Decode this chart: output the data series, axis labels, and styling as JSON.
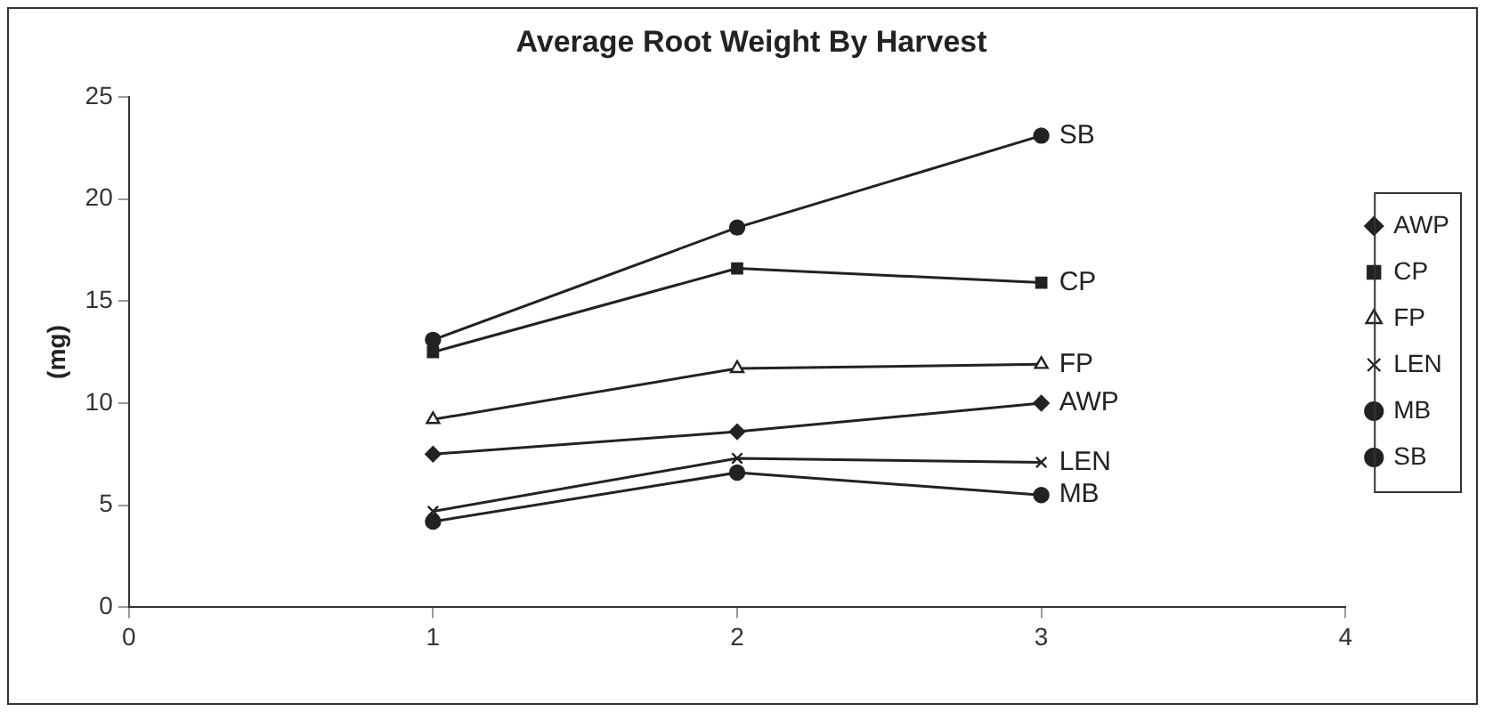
{
  "chart_data": {
    "type": "line",
    "title": "Average Root Weight By Harvest",
    "ylabel": "(mg)",
    "x": [
      1,
      2,
      3
    ],
    "series": [
      {
        "name": "AWP",
        "color": "#222222",
        "marker": "diamond",
        "values": [
          7.5,
          8.6,
          10.0
        ]
      },
      {
        "name": "CP",
        "color": "#222222",
        "marker": "square",
        "values": [
          12.5,
          16.6,
          15.9
        ]
      },
      {
        "name": "FP",
        "color": "#222222",
        "marker": "triangle",
        "values": [
          9.2,
          11.7,
          11.9
        ]
      },
      {
        "name": "LEN",
        "color": "#222222",
        "marker": "cross",
        "values": [
          4.7,
          7.3,
          7.1
        ]
      },
      {
        "name": "MB",
        "color": "#222222",
        "marker": "circle",
        "values": [
          4.2,
          6.6,
          5.5
        ]
      },
      {
        "name": "SB",
        "color": "#222222",
        "marker": "circle",
        "values": [
          13.1,
          18.6,
          23.1
        ]
      }
    ],
    "xlim": [
      0,
      4
    ],
    "xticks": [
      0,
      1,
      2,
      3,
      4
    ],
    "ylim": [
      0,
      25
    ],
    "yticks": [
      0,
      5,
      10,
      15,
      20,
      25
    ],
    "grid": false,
    "legend": "right",
    "line_style": "solid"
  }
}
